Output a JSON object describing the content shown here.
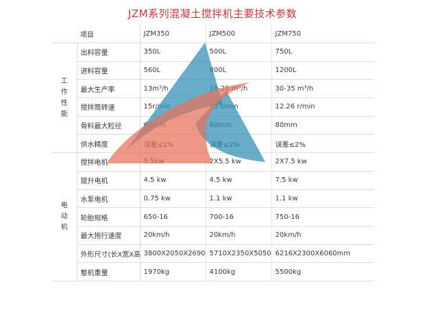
{
  "title": "JZM系列混凝土搅拌机主要技术参数",
  "header": {
    "item": "项目",
    "models": [
      "JZM350",
      "JZM500",
      "JZM750"
    ]
  },
  "groups": {
    "performance": [
      "工",
      "作",
      "性",
      "能"
    ],
    "electric": [
      "电",
      "动",
      "机"
    ]
  },
  "rows": [
    {
      "label": "出料容量",
      "values": [
        "350L",
        "500L",
        "750L"
      ]
    },
    {
      "label": "进料容量",
      "values": [
        "560L",
        "800L",
        "1200L"
      ]
    },
    {
      "label": "最大生产率",
      "values": [
        "13m³/h",
        "18-20 m³/h",
        "30-35 m³/h"
      ]
    },
    {
      "label": "搅拌筒转速",
      "values": [
        "15r/min",
        "15 r/min",
        "12.26 r/min"
      ]
    },
    {
      "label": "骨料最大粒径",
      "values": [
        "60mm",
        "60mm",
        "80mm"
      ]
    },
    {
      "label": "供水精度",
      "values": [
        "误差≤2%",
        "误差≤2%",
        "误差≤2%"
      ]
    },
    {
      "label": "搅拌电机",
      "values": [
        "5.5kw",
        "2X5.5 kw",
        "2X7.5 kw"
      ]
    },
    {
      "label": "提升电机",
      "values": [
        "4.5 kw",
        "4.5 kw",
        "7.5 kw"
      ]
    },
    {
      "label": "水泵电机",
      "values": [
        "0.75 kw",
        "1.1 kw",
        "1.1 kw"
      ]
    },
    {
      "label": "轮胎规格",
      "values": [
        "650-16",
        "700-16",
        "750-16"
      ]
    },
    {
      "label": "最大拖行速度",
      "values": [
        "20km/h",
        "20km/h",
        "20km/h"
      ]
    },
    {
      "label": "外形尺寸(长X宽X高)",
      "values": [
        "3800X2050X2690mm",
        "5710X2350X5050mm",
        "6216X2300X6060mm"
      ]
    },
    {
      "label": "整机重量",
      "values": [
        "1970kg",
        "4100kg",
        "5500kg"
      ]
    }
  ],
  "watermark": {
    "blue": "#2f8fb3",
    "red": "#e8705a"
  }
}
